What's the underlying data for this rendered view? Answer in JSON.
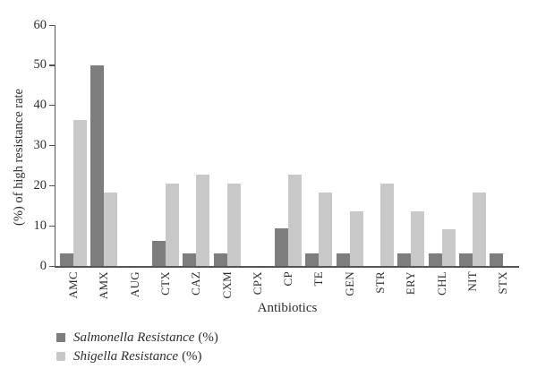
{
  "chart_data": {
    "type": "bar",
    "title": "",
    "xlabel": "Antibiotics",
    "ylabel": "(%) of high resistance rate",
    "categories": [
      "AMC",
      "AMX",
      "AUG",
      "CTX",
      "CAZ",
      "CXM",
      "CPX",
      "CP",
      "TE",
      "GEN",
      "STR",
      "ERY",
      "CHL",
      "NIT",
      "STX"
    ],
    "series": [
      {
        "name": "Salmonella Resistance (%)",
        "color": "#7d7d7d",
        "values": [
          3.1,
          50,
          0,
          6.3,
          3.1,
          3.1,
          0,
          9.4,
          3.1,
          3.1,
          0,
          3.1,
          3.1,
          3.1,
          3.1
        ]
      },
      {
        "name": "Shigella Resistance (%)",
        "color": "#c8c8c8",
        "values": [
          36.4,
          18.2,
          0,
          20.5,
          22.7,
          20.5,
          0,
          22.7,
          18.2,
          13.6,
          20.5,
          13.6,
          9.1,
          18.2,
          0
        ]
      }
    ],
    "ylim": [
      0,
      60
    ],
    "yticks": [
      0,
      10,
      20,
      30,
      40,
      50,
      60
    ],
    "grid": false,
    "legend_position": "below-left"
  },
  "legend": {
    "items": [
      {
        "italic_text": "Salmonella Resistance",
        "suffix": "(%)",
        "swatch_color": "#7d7d7d"
      },
      {
        "italic_text": "Shigella Resistance",
        "suffix": "(%)",
        "swatch_color": "#c8c8c8"
      }
    ]
  },
  "colors": {
    "axis": "#555555",
    "text": "#2e2e2e",
    "background": "#ffffff"
  }
}
